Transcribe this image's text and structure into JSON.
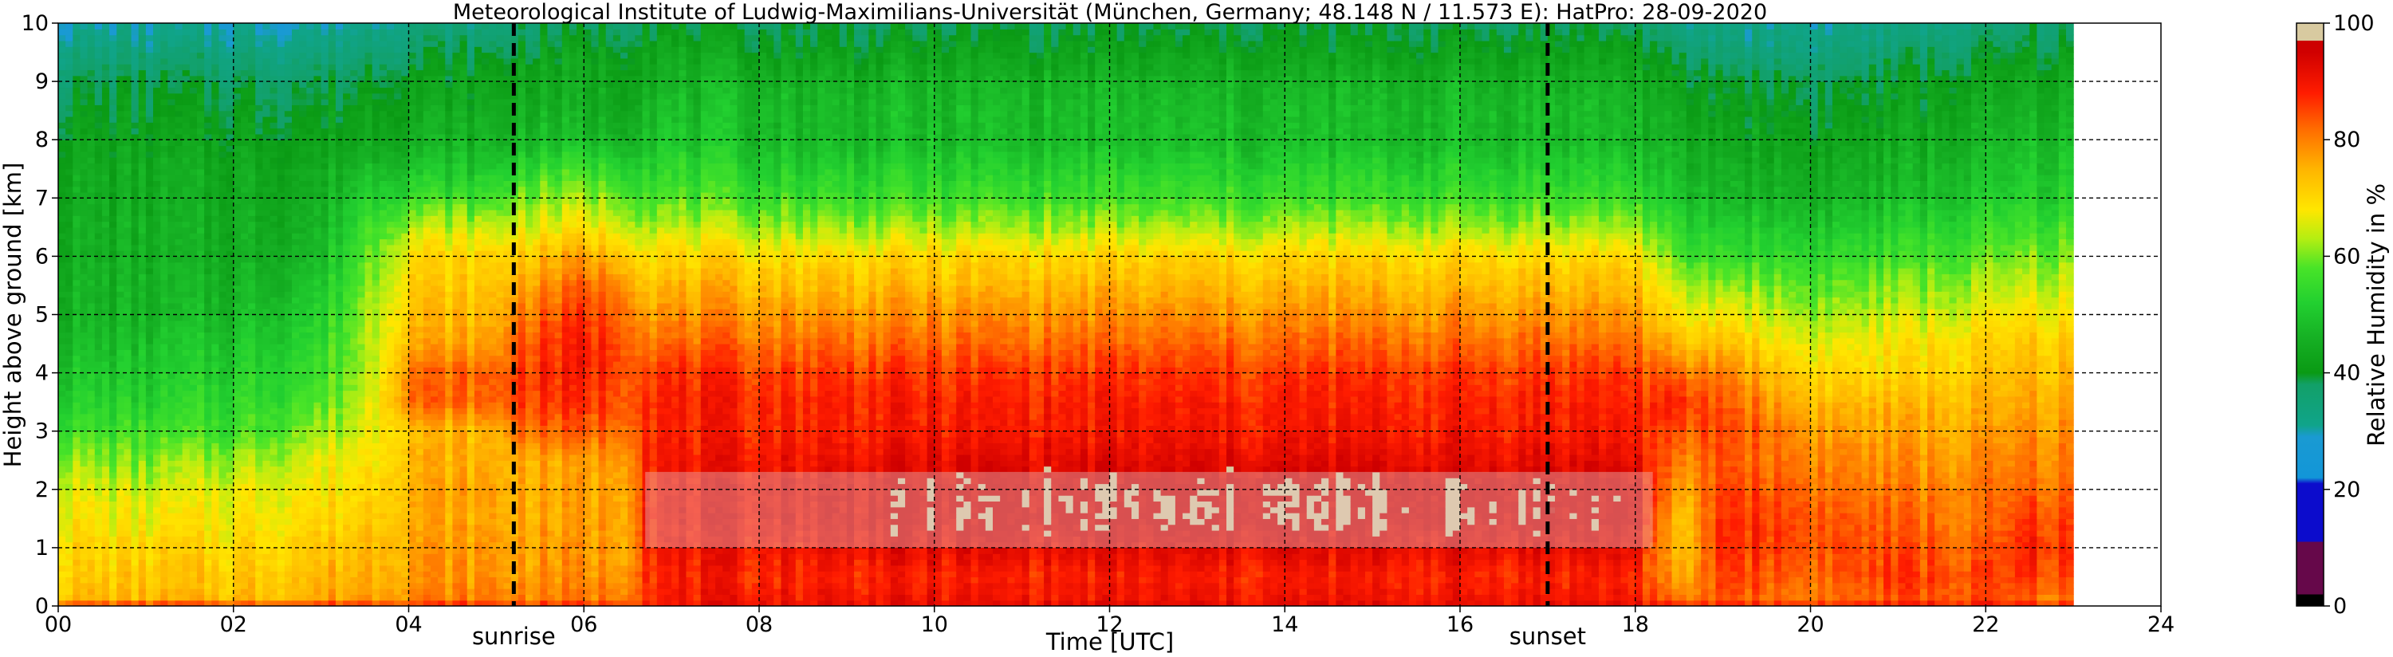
{
  "chart_data": {
    "type": "heatmap",
    "title": "Meteorological Institute of Ludwig-Maximilians-Universität (München, Germany; 48.148 N / 11.573 E):    HatPro: 28-09-2020",
    "xlabel": "Time [UTC]",
    "ylabel": "Height above ground [km]",
    "xlim": [
      0,
      24
    ],
    "ylim": [
      0,
      10
    ],
    "data_end_hour": 23,
    "x_ticks": [
      "00",
      "02",
      "04",
      "06",
      "08",
      "10",
      "12",
      "14",
      "16",
      "18",
      "20",
      "22",
      "24"
    ],
    "y_ticks": [
      "0",
      "1",
      "2",
      "3",
      "4",
      "5",
      "6",
      "7",
      "8",
      "9",
      "10"
    ],
    "grid": true,
    "colorbar": {
      "label": "Relative Humidity in %",
      "range": [
        0,
        100
      ],
      "ticks": [
        "0",
        "20",
        "40",
        "60",
        "80",
        "100"
      ]
    },
    "annotations": [
      {
        "label": "sunrise",
        "x": 5.2
      },
      {
        "label": "sunset",
        "x": 17.0
      }
    ],
    "hours": [
      0,
      1,
      2,
      3,
      3.5,
      4,
      5,
      5.2,
      6,
      6.5,
      6.7,
      8,
      10,
      12,
      14,
      16,
      18,
      18.5,
      19,
      20,
      21,
      22,
      22.5,
      23
    ],
    "heights": [
      0,
      0.1,
      0.5,
      1,
      1.5,
      2,
      2.5,
      3,
      3.5,
      4,
      4.5,
      5,
      5.5,
      6,
      6.5,
      7,
      7.5,
      8,
      8.5,
      9,
      9.5,
      10
    ],
    "rh_percent": [
      [
        90,
        74,
        72,
        70,
        68,
        66,
        62,
        56,
        52,
        50,
        48,
        46,
        46,
        45,
        45,
        44,
        44,
        42,
        40,
        38,
        34,
        30
      ],
      [
        90,
        74,
        72,
        70,
        67,
        64,
        60,
        56,
        52,
        50,
        48,
        46,
        46,
        45,
        45,
        44,
        44,
        42,
        40,
        38,
        34,
        30
      ],
      [
        90,
        74,
        72,
        70,
        68,
        66,
        62,
        56,
        54,
        52,
        50,
        48,
        46,
        45,
        45,
        44,
        44,
        42,
        40,
        38,
        34,
        30
      ],
      [
        90,
        76,
        74,
        72,
        70,
        68,
        66,
        62,
        58,
        56,
        54,
        52,
        50,
        48,
        46,
        45,
        44,
        42,
        40,
        38,
        34,
        30
      ],
      [
        90,
        78,
        76,
        74,
        72,
        70,
        68,
        66,
        64,
        62,
        62,
        62,
        60,
        58,
        56,
        52,
        48,
        44,
        42,
        40,
        36,
        32
      ],
      [
        90,
        80,
        78,
        77,
        76,
        76,
        75,
        74,
        82,
        82,
        76,
        74,
        72,
        70,
        64,
        56,
        50,
        46,
        44,
        42,
        38,
        34
      ],
      [
        90,
        80,
        78,
        77,
        76,
        76,
        75,
        74,
        82,
        82,
        76,
        74,
        72,
        70,
        64,
        56,
        50,
        46,
        44,
        42,
        38,
        34
      ],
      [
        90,
        80,
        78,
        77,
        76,
        76,
        76,
        82,
        86,
        86,
        84,
        80,
        76,
        72,
        66,
        60,
        54,
        48,
        46,
        44,
        40,
        36
      ],
      [
        90,
        80,
        78,
        77,
        76,
        76,
        76,
        82,
        86,
        88,
        88,
        86,
        82,
        76,
        68,
        62,
        56,
        48,
        45,
        44,
        42,
        38
      ],
      [
        90,
        82,
        80,
        78,
        78,
        78,
        80,
        84,
        86,
        86,
        86,
        84,
        80,
        74,
        66,
        60,
        54,
        48,
        45,
        44,
        42,
        38
      ],
      [
        90,
        88,
        88,
        89,
        90,
        90,
        89,
        88,
        88,
        87,
        82,
        78,
        74,
        70,
        64,
        58,
        54,
        50,
        48,
        46,
        44,
        40
      ],
      [
        92,
        90,
        88,
        90,
        92,
        92,
        90,
        88,
        88,
        86,
        82,
        78,
        74,
        70,
        62,
        56,
        52,
        48,
        48,
        46,
        42,
        38
      ],
      [
        92,
        90,
        88,
        92,
        95,
        95,
        92,
        89,
        88,
        86,
        82,
        78,
        74,
        70,
        62,
        56,
        52,
        48,
        48,
        46,
        42,
        38
      ],
      [
        92,
        90,
        88,
        92,
        96,
        96,
        92,
        89,
        88,
        86,
        82,
        78,
        74,
        70,
        62,
        56,
        52,
        48,
        48,
        46,
        42,
        38
      ],
      [
        92,
        90,
        88,
        92,
        96,
        96,
        92,
        89,
        88,
        86,
        82,
        78,
        74,
        70,
        62,
        56,
        52,
        48,
        48,
        46,
        42,
        38
      ],
      [
        92,
        90,
        88,
        92,
        96,
        96,
        92,
        89,
        88,
        86,
        82,
        78,
        74,
        70,
        62,
        56,
        52,
        48,
        48,
        46,
        42,
        38
      ],
      [
        92,
        90,
        88,
        92,
        95,
        95,
        92,
        89,
        88,
        86,
        82,
        78,
        74,
        70,
        62,
        56,
        52,
        48,
        48,
        46,
        42,
        38
      ],
      [
        90,
        78,
        74,
        70,
        70,
        74,
        78,
        82,
        86,
        80,
        72,
        66,
        62,
        56,
        52,
        48,
        46,
        44,
        42,
        40,
        36,
        32
      ],
      [
        90,
        84,
        86,
        88,
        88,
        86,
        84,
        86,
        84,
        80,
        74,
        68,
        62,
        56,
        52,
        48,
        46,
        44,
        42,
        40,
        36,
        32
      ],
      [
        90,
        80,
        82,
        84,
        84,
        82,
        80,
        78,
        74,
        70,
        66,
        62,
        58,
        54,
        50,
        46,
        44,
        42,
        40,
        38,
        34,
        32
      ],
      [
        90,
        84,
        86,
        84,
        82,
        80,
        78,
        76,
        74,
        70,
        68,
        64,
        60,
        56,
        52,
        48,
        46,
        44,
        42,
        40,
        36,
        32
      ],
      [
        90,
        84,
        84,
        82,
        80,
        80,
        78,
        76,
        74,
        72,
        70,
        66,
        62,
        58,
        54,
        50,
        48,
        46,
        44,
        42,
        38,
        34
      ],
      [
        90,
        82,
        86,
        88,
        86,
        82,
        80,
        78,
        76,
        74,
        72,
        68,
        64,
        60,
        56,
        52,
        50,
        48,
        46,
        44,
        40,
        36
      ],
      [
        90,
        80,
        84,
        86,
        84,
        82,
        80,
        78,
        76,
        74,
        72,
        68,
        64,
        60,
        56,
        52,
        50,
        48,
        46,
        44,
        40,
        36
      ]
    ],
    "pale_zone": {
      "x_range": [
        6.7,
        18.2
      ],
      "height_range": [
        1.0,
        2.3
      ]
    }
  }
}
